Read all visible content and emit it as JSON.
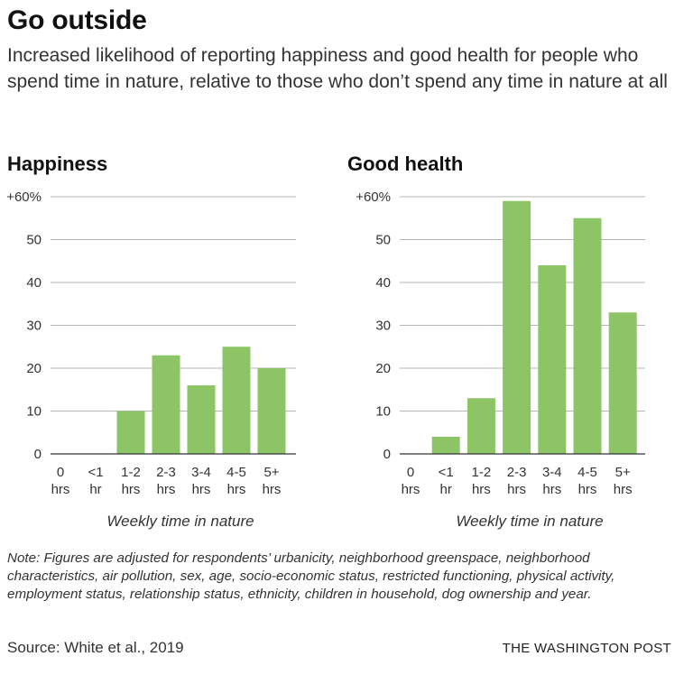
{
  "header": {
    "title": "Go outside",
    "subtitle": "Increased likelihood of reporting happiness and good health for people who spend time in nature, relative to those who don’t spend any time in nature at all"
  },
  "footer": {
    "note": "Note: Figures are adjusted for respondents’ urbanicity, neighborhood greenspace, neighborhood characteristics, air pollution, sex, age, socio-economic status, restricted functioning, physical activity, employment status, relationship status, ethnicity, children in household, dog ownership and year.",
    "source": "Source: White et al., 2019",
    "credit": "THE WASHINGTON POST"
  },
  "colors": {
    "bar": "#8cc466",
    "grid": "#b5b5b5",
    "baseline": "#333333"
  },
  "chart_data": [
    {
      "type": "bar",
      "title": "Happiness",
      "xlabel": "Weekly time in nature",
      "ylabel": "",
      "ylim": [
        0,
        60
      ],
      "yticks": [
        0,
        10,
        20,
        30,
        40,
        50,
        60
      ],
      "ytick_labels": [
        "0",
        "10",
        "20",
        "30",
        "40",
        "50",
        "+60%"
      ],
      "categories": [
        [
          "0",
          "hrs"
        ],
        [
          "<1",
          "hr"
        ],
        [
          "1-2",
          "hrs"
        ],
        [
          "2-3",
          "hrs"
        ],
        [
          "3-4",
          "hrs"
        ],
        [
          "4-5",
          "hrs"
        ],
        [
          "5+",
          "hrs"
        ]
      ],
      "values": [
        0,
        0,
        10,
        23,
        16,
        25,
        20
      ],
      "grid": true
    },
    {
      "type": "bar",
      "title": "Good health",
      "xlabel": "Weekly time in nature",
      "ylabel": "",
      "ylim": [
        0,
        60
      ],
      "yticks": [
        0,
        10,
        20,
        30,
        40,
        50,
        60
      ],
      "ytick_labels": [
        "0",
        "10",
        "20",
        "30",
        "40",
        "50",
        "+60%"
      ],
      "categories": [
        [
          "0",
          "hrs"
        ],
        [
          "<1",
          "hr"
        ],
        [
          "1-2",
          "hrs"
        ],
        [
          "2-3",
          "hrs"
        ],
        [
          "3-4",
          "hrs"
        ],
        [
          "4-5",
          "hrs"
        ],
        [
          "5+",
          "hrs"
        ]
      ],
      "values": [
        0,
        4,
        13,
        59,
        44,
        55,
        33
      ],
      "grid": true
    }
  ]
}
